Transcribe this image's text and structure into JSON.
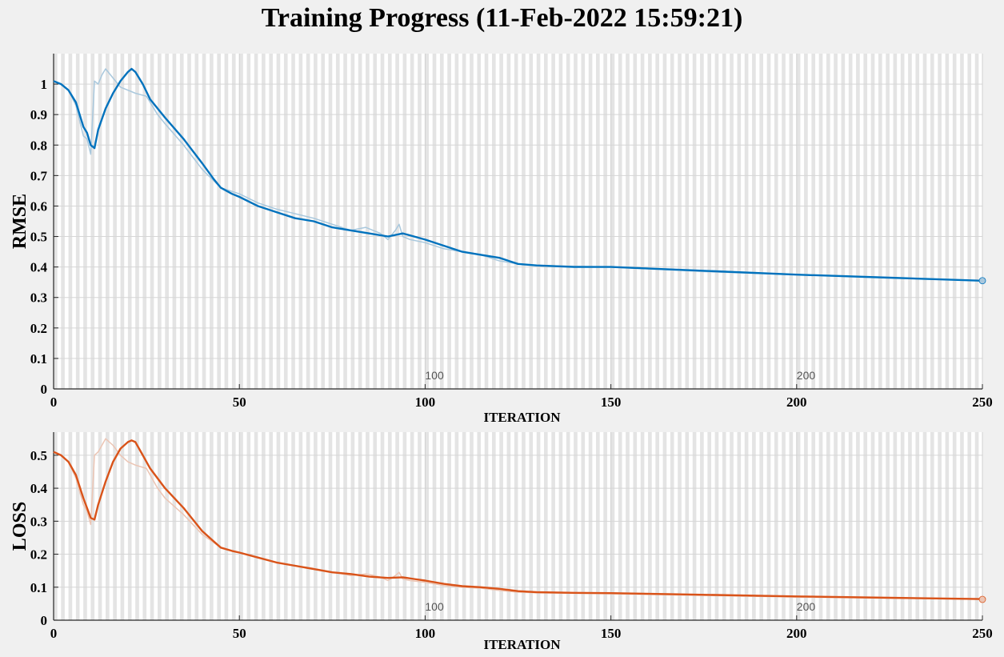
{
  "title": "Training Progress (11-Feb-2022 15:59:21)",
  "chart_data": [
    {
      "id": "rmse",
      "type": "line",
      "xlabel": "ITERATION",
      "ylabel": "RMSE",
      "xlim": [
        0,
        250
      ],
      "ylim": [
        0,
        1.1
      ],
      "xticks": [
        0,
        50,
        100,
        150,
        200,
        250
      ],
      "yticks": [
        0,
        0.1,
        0.2,
        0.3,
        0.4,
        0.5,
        0.6,
        0.7,
        0.8,
        0.9,
        1
      ],
      "ytick_labels": [
        "0",
        "0.1",
        "0.2",
        "0.3",
        "0.4",
        "0.5",
        "0.6",
        "0.7",
        "0.8",
        "0.9",
        "1"
      ],
      "grid": true,
      "epoch_labels": [
        {
          "x": 100,
          "label": "100"
        },
        {
          "x": 200,
          "label": "200"
        }
      ],
      "color": "#0072BD",
      "raw_color": "#a9c8dd",
      "series": [
        {
          "style": "raw",
          "x": [
            0,
            2,
            4,
            6,
            8,
            9,
            10,
            11,
            12,
            13,
            14,
            16,
            18,
            20,
            22,
            25,
            28,
            30,
            35,
            40,
            45,
            50,
            55,
            60,
            70,
            80,
            84,
            86,
            88,
            90,
            92,
            93,
            94,
            96,
            100,
            105,
            110,
            115,
            120,
            125,
            130,
            150,
            175,
            200,
            225,
            250
          ],
          "y": [
            1.01,
            1.0,
            0.98,
            0.93,
            0.83,
            0.82,
            0.77,
            1.01,
            1.0,
            1.03,
            1.05,
            1.02,
            0.99,
            0.98,
            0.97,
            0.96,
            0.9,
            0.87,
            0.8,
            0.72,
            0.66,
            0.64,
            0.61,
            0.59,
            0.56,
            0.52,
            0.53,
            0.52,
            0.51,
            0.49,
            0.52,
            0.54,
            0.5,
            0.49,
            0.48,
            0.46,
            0.45,
            0.44,
            0.42,
            0.41,
            0.405,
            0.4,
            0.385,
            0.375,
            0.365,
            0.355
          ]
        },
        {
          "style": "smoothed",
          "x": [
            0,
            2,
            4,
            6,
            8,
            9,
            10,
            11,
            12,
            14,
            16,
            18,
            20,
            21,
            22,
            24,
            26,
            30,
            35,
            40,
            43,
            45,
            48,
            50,
            55,
            60,
            65,
            70,
            75,
            80,
            85,
            90,
            94,
            97,
            100,
            105,
            110,
            115,
            120,
            125,
            130,
            140,
            150,
            170,
            200,
            225,
            250
          ],
          "y": [
            1.01,
            1.0,
            0.98,
            0.94,
            0.86,
            0.84,
            0.8,
            0.79,
            0.85,
            0.92,
            0.97,
            1.01,
            1.04,
            1.05,
            1.04,
            1.0,
            0.95,
            0.89,
            0.82,
            0.74,
            0.69,
            0.66,
            0.64,
            0.63,
            0.6,
            0.58,
            0.56,
            0.55,
            0.53,
            0.52,
            0.51,
            0.5,
            0.51,
            0.5,
            0.49,
            0.47,
            0.45,
            0.44,
            0.43,
            0.41,
            0.405,
            0.4,
            0.4,
            0.39,
            0.375,
            0.365,
            0.355
          ]
        }
      ]
    },
    {
      "id": "loss",
      "type": "line",
      "xlabel": "ITERATION",
      "ylabel": "LOSS",
      "xlim": [
        0,
        250
      ],
      "ylim": [
        0,
        0.57
      ],
      "xticks": [
        0,
        50,
        100,
        150,
        200,
        250
      ],
      "yticks": [
        0,
        0.1,
        0.2,
        0.3,
        0.4,
        0.5
      ],
      "ytick_labels": [
        "0",
        "0.1",
        "0.2",
        "0.3",
        "0.4",
        "0.5"
      ],
      "grid": true,
      "epoch_labels": [
        {
          "x": 100,
          "label": "100"
        },
        {
          "x": 200,
          "label": "200"
        }
      ],
      "color": "#D95319",
      "raw_color": "#ecc5b4",
      "series": [
        {
          "style": "raw",
          "x": [
            0,
            2,
            4,
            6,
            8,
            9,
            10,
            11,
            12,
            13,
            14,
            16,
            18,
            20,
            22,
            25,
            28,
            30,
            35,
            40,
            45,
            50,
            55,
            60,
            70,
            80,
            84,
            86,
            88,
            90,
            92,
            93,
            94,
            96,
            100,
            105,
            110,
            115,
            120,
            125,
            130,
            150,
            175,
            200,
            225,
            250
          ],
          "y": [
            0.51,
            0.5,
            0.48,
            0.43,
            0.35,
            0.33,
            0.29,
            0.5,
            0.51,
            0.53,
            0.55,
            0.53,
            0.5,
            0.48,
            0.47,
            0.46,
            0.4,
            0.37,
            0.32,
            0.26,
            0.22,
            0.205,
            0.19,
            0.175,
            0.157,
            0.135,
            0.14,
            0.136,
            0.13,
            0.12,
            0.135,
            0.145,
            0.125,
            0.12,
            0.115,
            0.105,
            0.1,
            0.097,
            0.09,
            0.085,
            0.083,
            0.08,
            0.075,
            0.07,
            0.067,
            0.063
          ]
        },
        {
          "style": "smoothed",
          "x": [
            0,
            2,
            4,
            6,
            8,
            9,
            10,
            11,
            12,
            14,
            16,
            18,
            20,
            21,
            22,
            24,
            26,
            30,
            35,
            40,
            43,
            45,
            48,
            50,
            55,
            60,
            65,
            70,
            75,
            80,
            85,
            90,
            94,
            97,
            100,
            105,
            110,
            115,
            120,
            125,
            130,
            140,
            150,
            170,
            200,
            225,
            250
          ],
          "y": [
            0.51,
            0.5,
            0.48,
            0.44,
            0.37,
            0.34,
            0.31,
            0.305,
            0.35,
            0.42,
            0.48,
            0.52,
            0.54,
            0.545,
            0.54,
            0.5,
            0.46,
            0.4,
            0.34,
            0.27,
            0.24,
            0.22,
            0.21,
            0.205,
            0.19,
            0.175,
            0.165,
            0.155,
            0.145,
            0.14,
            0.132,
            0.128,
            0.13,
            0.125,
            0.12,
            0.11,
            0.103,
            0.1,
            0.095,
            0.088,
            0.085,
            0.083,
            0.082,
            0.078,
            0.072,
            0.068,
            0.064
          ]
        }
      ]
    }
  ]
}
